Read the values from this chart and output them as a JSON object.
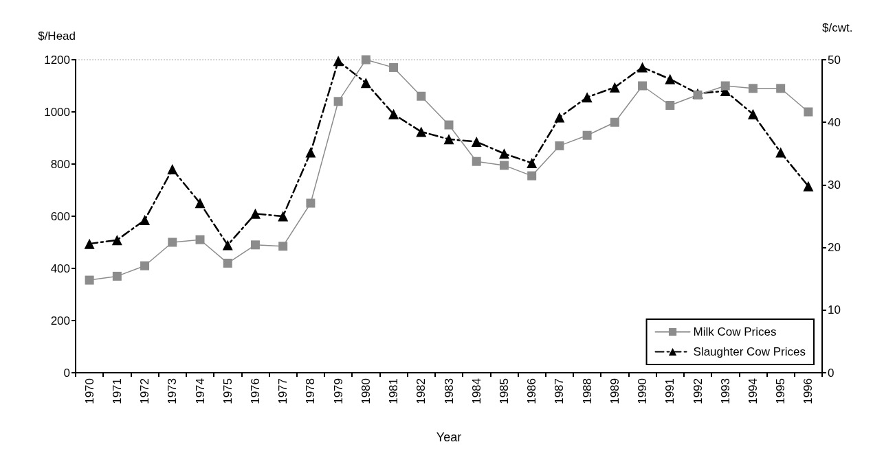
{
  "chart_data": {
    "type": "line",
    "xlabel": "Year",
    "ylabel": "$/Head",
    "y2label": "$/cwt.",
    "categories": [
      "1970",
      "1971",
      "1972",
      "1973",
      "1974",
      "1975",
      "1976",
      "1977",
      "1978",
      "1979",
      "1980",
      "1981",
      "1982",
      "1983",
      "1984",
      "1985",
      "1986",
      "1987",
      "1988",
      "1989",
      "1990",
      "1991",
      "1992",
      "1993",
      "1994",
      "1995",
      "1996"
    ],
    "series": [
      {
        "name": "Milk Cow Prices",
        "color": "#8c8c8c",
        "marker": "square",
        "line_style": "solid",
        "values": [
          355,
          370,
          410,
          500,
          510,
          420,
          490,
          485,
          650,
          1040,
          1200,
          1170,
          1060,
          950,
          810,
          795,
          755,
          870,
          910,
          960,
          1100,
          1025,
          1065,
          1100,
          1090,
          1090,
          1000
        ]
      },
      {
        "name": "Slaughter Cow Prices",
        "color": "#000000",
        "marker": "triangle",
        "line_style": "dashed",
        "axis": "y2",
        "values": [
          20.6,
          21.2,
          24.4,
          32.5,
          27.1,
          20.4,
          25.4,
          25,
          35.2,
          49.8,
          46.3,
          41.3,
          38.5,
          37.3,
          36.9,
          35,
          33.5,
          40.8,
          44,
          45.6,
          48.8,
          46.9,
          44.6,
          45,
          41.3,
          35.2,
          29.8
        ]
      }
    ],
    "ylim": [
      0,
      1200
    ],
    "yticks": [
      0,
      200,
      400,
      600,
      800,
      1000,
      1200
    ],
    "y2lim": [
      0,
      50
    ],
    "y2ticks": [
      0,
      10,
      20,
      30,
      40,
      50
    ],
    "grid": false,
    "legend": "bottom right"
  }
}
